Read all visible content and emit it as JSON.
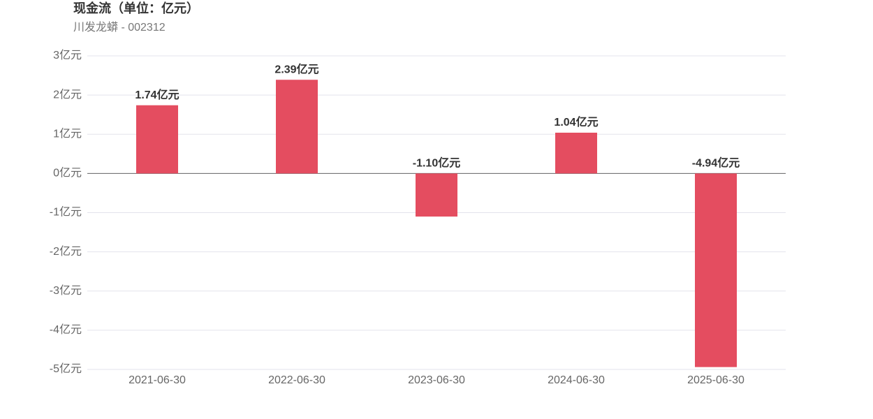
{
  "chart_data": {
    "type": "bar",
    "title": "现金流（单位：亿元）",
    "subtitle": "川发龙蟒 - 002312",
    "categories": [
      "2021-06-30",
      "2022-06-30",
      "2023-06-30",
      "2024-06-30",
      "2025-06-30"
    ],
    "values": [
      1.74,
      2.39,
      -1.1,
      1.04,
      -4.94
    ],
    "value_labels": [
      "1.74亿元",
      "2.39亿元",
      "-1.10亿元",
      "1.04亿元",
      "-4.94亿元"
    ],
    "color": "#e44d60",
    "ylim": [
      -5,
      3
    ],
    "yticks": [
      {
        "value": -5,
        "label": "-5亿元"
      },
      {
        "value": -4,
        "label": "-4亿元"
      },
      {
        "value": -3,
        "label": "-3亿元"
      },
      {
        "value": -2,
        "label": "-2亿元"
      },
      {
        "value": -1,
        "label": "-1亿元"
      },
      {
        "value": 0,
        "label": "0亿元"
      },
      {
        "value": 1,
        "label": "1亿元"
      },
      {
        "value": 2,
        "label": "2亿元"
      },
      {
        "value": 3,
        "label": "3亿元"
      }
    ],
    "grid": true
  }
}
